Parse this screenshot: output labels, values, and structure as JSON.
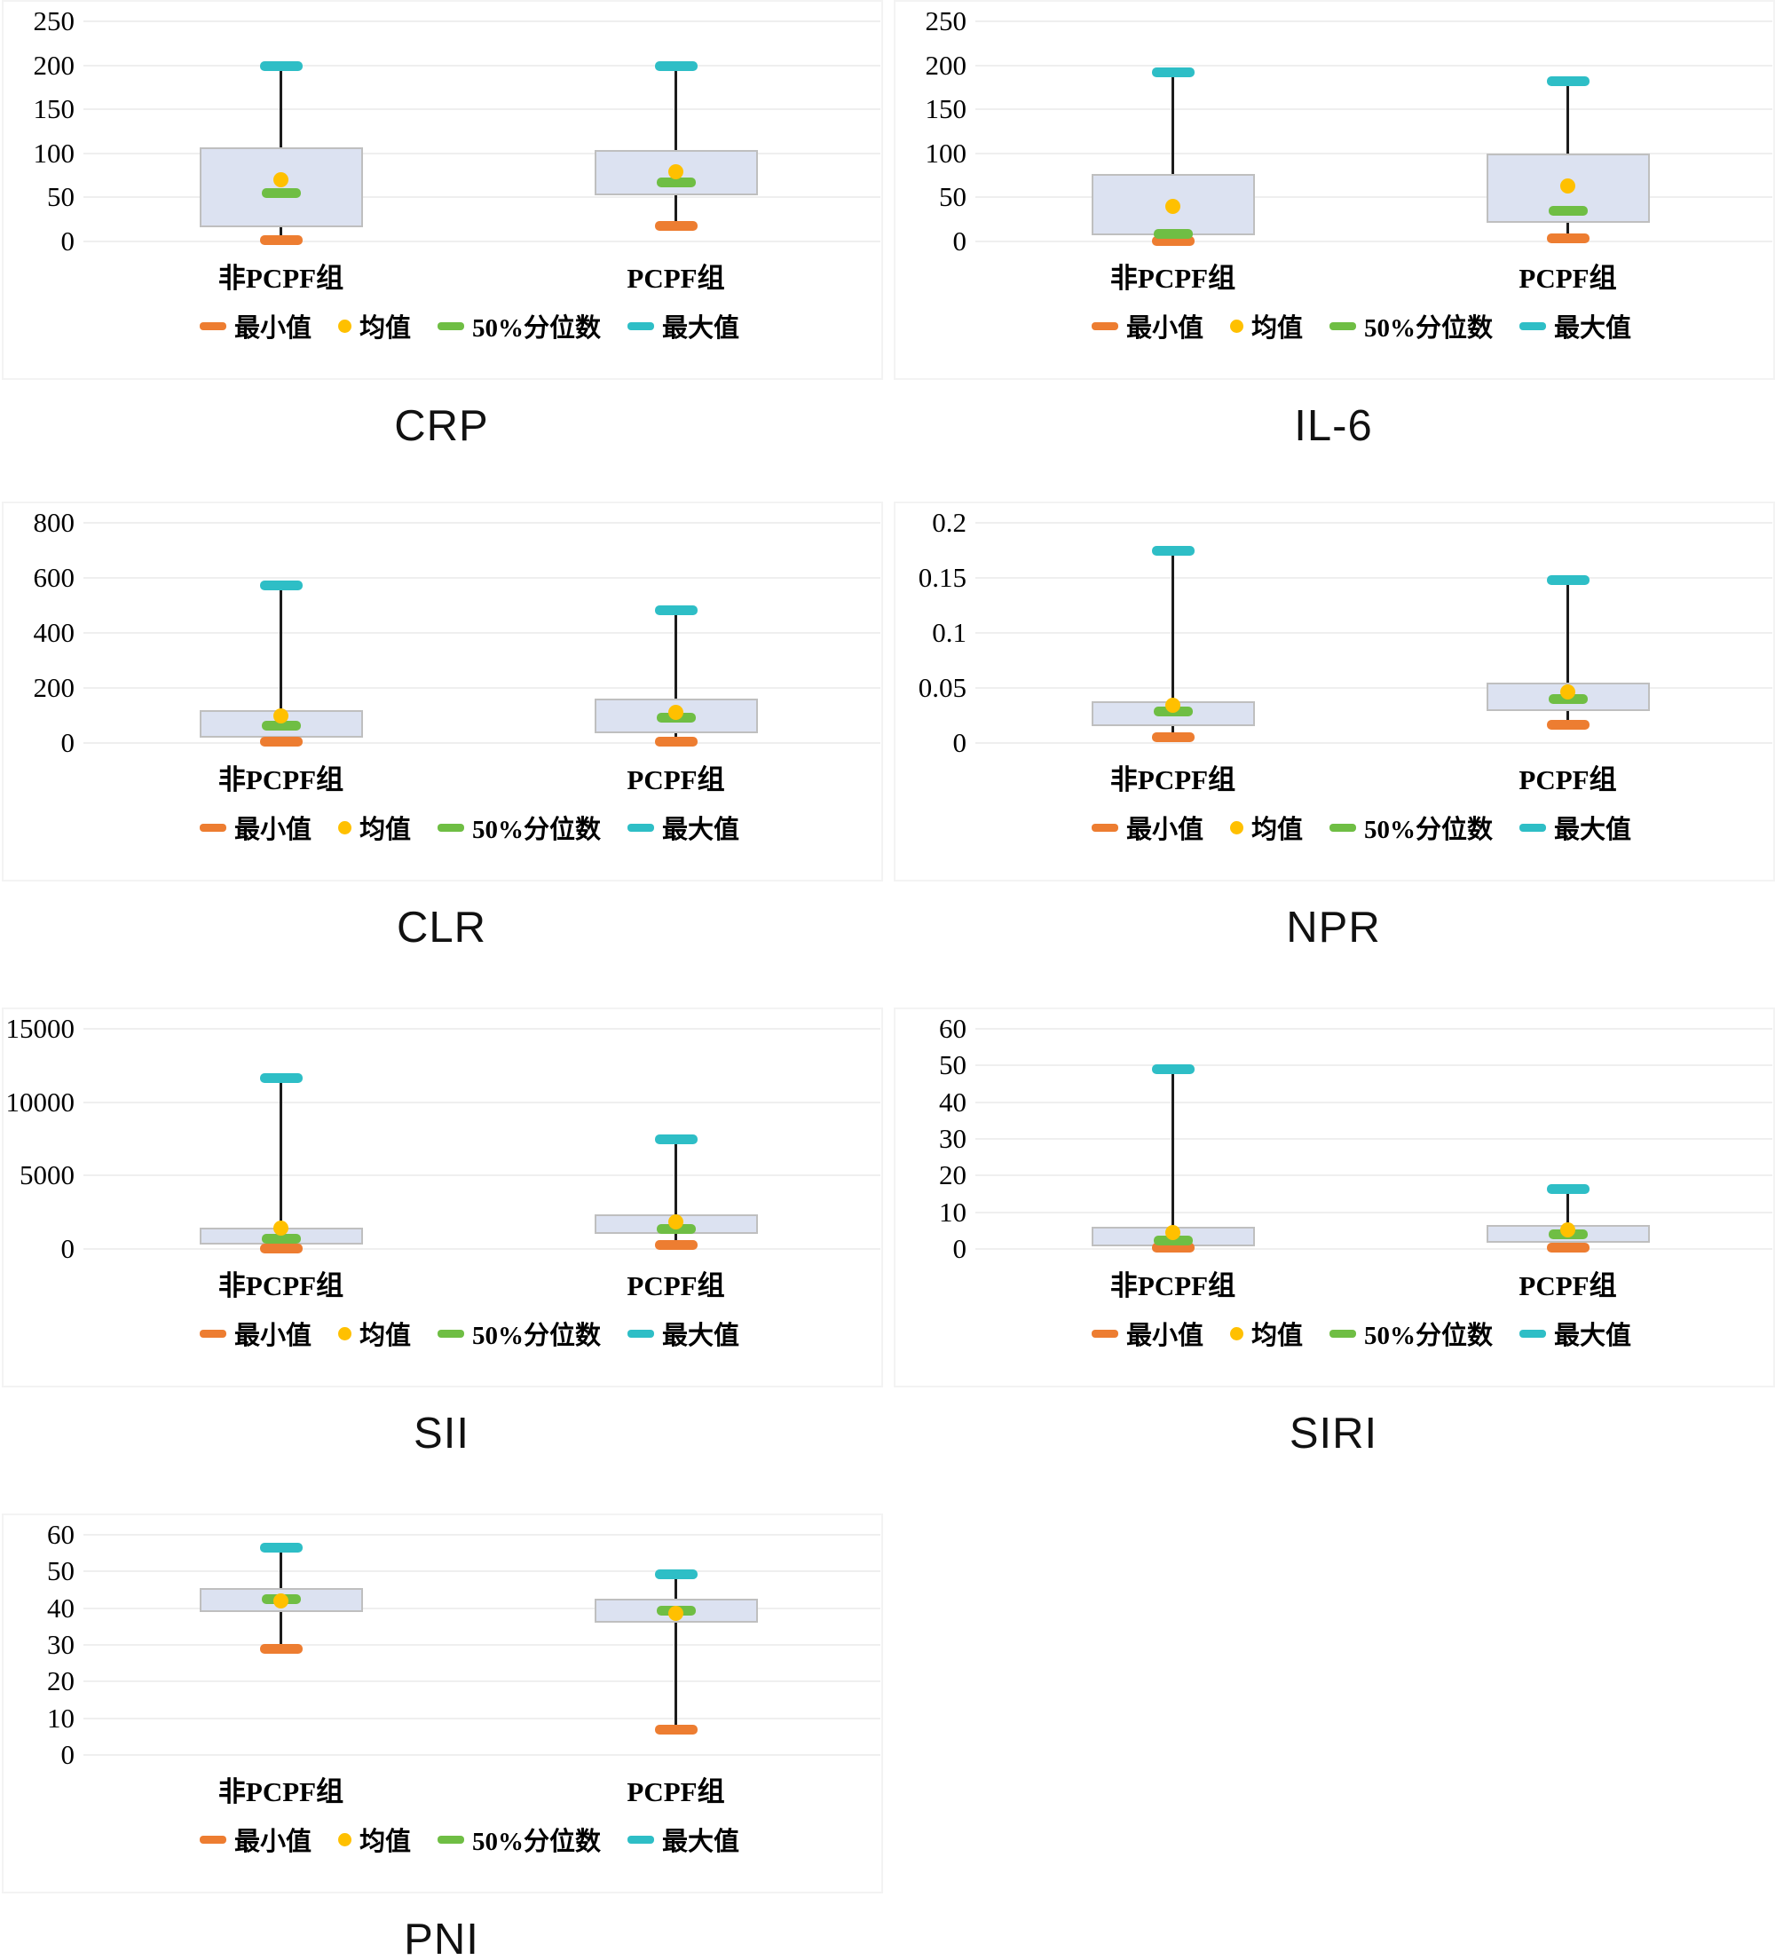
{
  "figure": {
    "background": "#ffffff",
    "group_axis_note": "two box groups per chart"
  },
  "colors": {
    "box_fill": "#dce2f1",
    "box_border": "#bfbfbf",
    "whisker": "#1c1c1c",
    "gridline": "#efefef",
    "min": "#ED7D31",
    "mean": "#FFC000",
    "median": "#6FBE44",
    "max": "#2EBEC6"
  },
  "categories": [
    "非PCPF组",
    "PCPF组"
  ],
  "legend": {
    "items": [
      {
        "name": "min-legend",
        "shape": "dash",
        "color": "#ED7D31",
        "label": "最小值"
      },
      {
        "name": "mean-legend",
        "shape": "dot",
        "color": "#FFC000",
        "label": "均值"
      },
      {
        "name": "median-legend",
        "shape": "dash",
        "color": "#6FBE44",
        "label": "50%分位数"
      },
      {
        "name": "max-legend",
        "shape": "dash",
        "color": "#2EBEC6",
        "label": "最大值"
      }
    ]
  },
  "chart_data": [
    {
      "type": "box",
      "id": "crp",
      "title": "CRP",
      "row": 0,
      "col": 0,
      "ymax": 250,
      "yticks": [
        "250",
        "200",
        "150",
        "100",
        "50",
        "0"
      ],
      "groups": [
        {
          "category": "非PCPF组",
          "min": 2,
          "q1": 16,
          "median": 55,
          "mean": 70,
          "q3": 107,
          "max": 200
        },
        {
          "category": "PCPF组",
          "min": 18,
          "q1": 52,
          "median": 68,
          "mean": 79,
          "q3": 104,
          "max": 200
        }
      ]
    },
    {
      "type": "box",
      "id": "il6",
      "title": "IL-6",
      "row": 0,
      "col": 1,
      "ymax": 250,
      "yticks": [
        "250",
        "200",
        "150",
        "100",
        "50",
        "0"
      ],
      "groups": [
        {
          "category": "非PCPF组",
          "min": 1,
          "q1": 7,
          "median": 9,
          "mean": 40,
          "q3": 77,
          "max": 193
        },
        {
          "category": "PCPF组",
          "min": 4,
          "q1": 21,
          "median": 35,
          "mean": 63,
          "q3": 100,
          "max": 182
        }
      ]
    },
    {
      "type": "box",
      "id": "clr",
      "title": "CLR",
      "row": 1,
      "col": 0,
      "ymax": 800,
      "yticks": [
        "800",
        "600",
        "400",
        "200",
        "0"
      ],
      "groups": [
        {
          "category": "非PCPF组",
          "min": 5,
          "q1": 20,
          "median": 66,
          "mean": 100,
          "q3": 120,
          "max": 575
        },
        {
          "category": "PCPF组",
          "min": 8,
          "q1": 35,
          "median": 93,
          "mean": 112,
          "q3": 160,
          "max": 485
        }
      ]
    },
    {
      "type": "box",
      "id": "npr",
      "title": "NPR",
      "row": 1,
      "col": 1,
      "ymax": 0.2,
      "yticks": [
        "0.2",
        "0.15",
        "0.1",
        "0.05",
        "0"
      ],
      "groups": [
        {
          "category": "非PCPF组",
          "min": 0.006,
          "q1": 0.015,
          "median": 0.029,
          "mean": 0.034,
          "q3": 0.038,
          "max": 0.175
        },
        {
          "category": "PCPF组",
          "min": 0.017,
          "q1": 0.029,
          "median": 0.04,
          "mean": 0.046,
          "q3": 0.055,
          "max": 0.148
        }
      ]
    },
    {
      "type": "box",
      "id": "sii",
      "title": "SII",
      "row": 2,
      "col": 0,
      "ymax": 15000,
      "yticks": [
        "15000",
        "10000",
        "5000",
        "0"
      ],
      "groups": [
        {
          "category": "非PCPF组",
          "min": 50,
          "q1": 300,
          "median": 750,
          "mean": 1400,
          "q3": 1450,
          "max": 11700
        },
        {
          "category": "PCPF组",
          "min": 300,
          "q1": 1050,
          "median": 1400,
          "mean": 1850,
          "q3": 2350,
          "max": 7500
        }
      ]
    },
    {
      "type": "box",
      "id": "siri",
      "title": "SIRI",
      "row": 2,
      "col": 1,
      "ymax": 60,
      "yticks": [
        "60",
        "50",
        "40",
        "30",
        "20",
        "10",
        "0"
      ],
      "groups": [
        {
          "category": "非PCPF组",
          "min": 0.4,
          "q1": 0.8,
          "median": 2.5,
          "mean": 4.5,
          "q3": 6.0,
          "max": 49
        },
        {
          "category": "PCPF组",
          "min": 0.5,
          "q1": 1.7,
          "median": 4.2,
          "mean": 5.2,
          "q3": 6.6,
          "max": 16.5
        }
      ]
    },
    {
      "type": "box",
      "id": "pni",
      "title": "PNI",
      "row": 3,
      "col": 0,
      "ymax": 60,
      "yticks": [
        "60",
        "50",
        "40",
        "30",
        "20",
        "10",
        "0"
      ],
      "groups": [
        {
          "category": "非PCPF组",
          "min": 29,
          "q1": 39,
          "median": 42.7,
          "mean": 42,
          "q3": 45.5,
          "max": 56.5
        },
        {
          "category": "PCPF组",
          "min": 7,
          "q1": 36,
          "median": 39.5,
          "mean": 38.5,
          "q3": 42.7,
          "max": 49.3
        }
      ]
    }
  ]
}
